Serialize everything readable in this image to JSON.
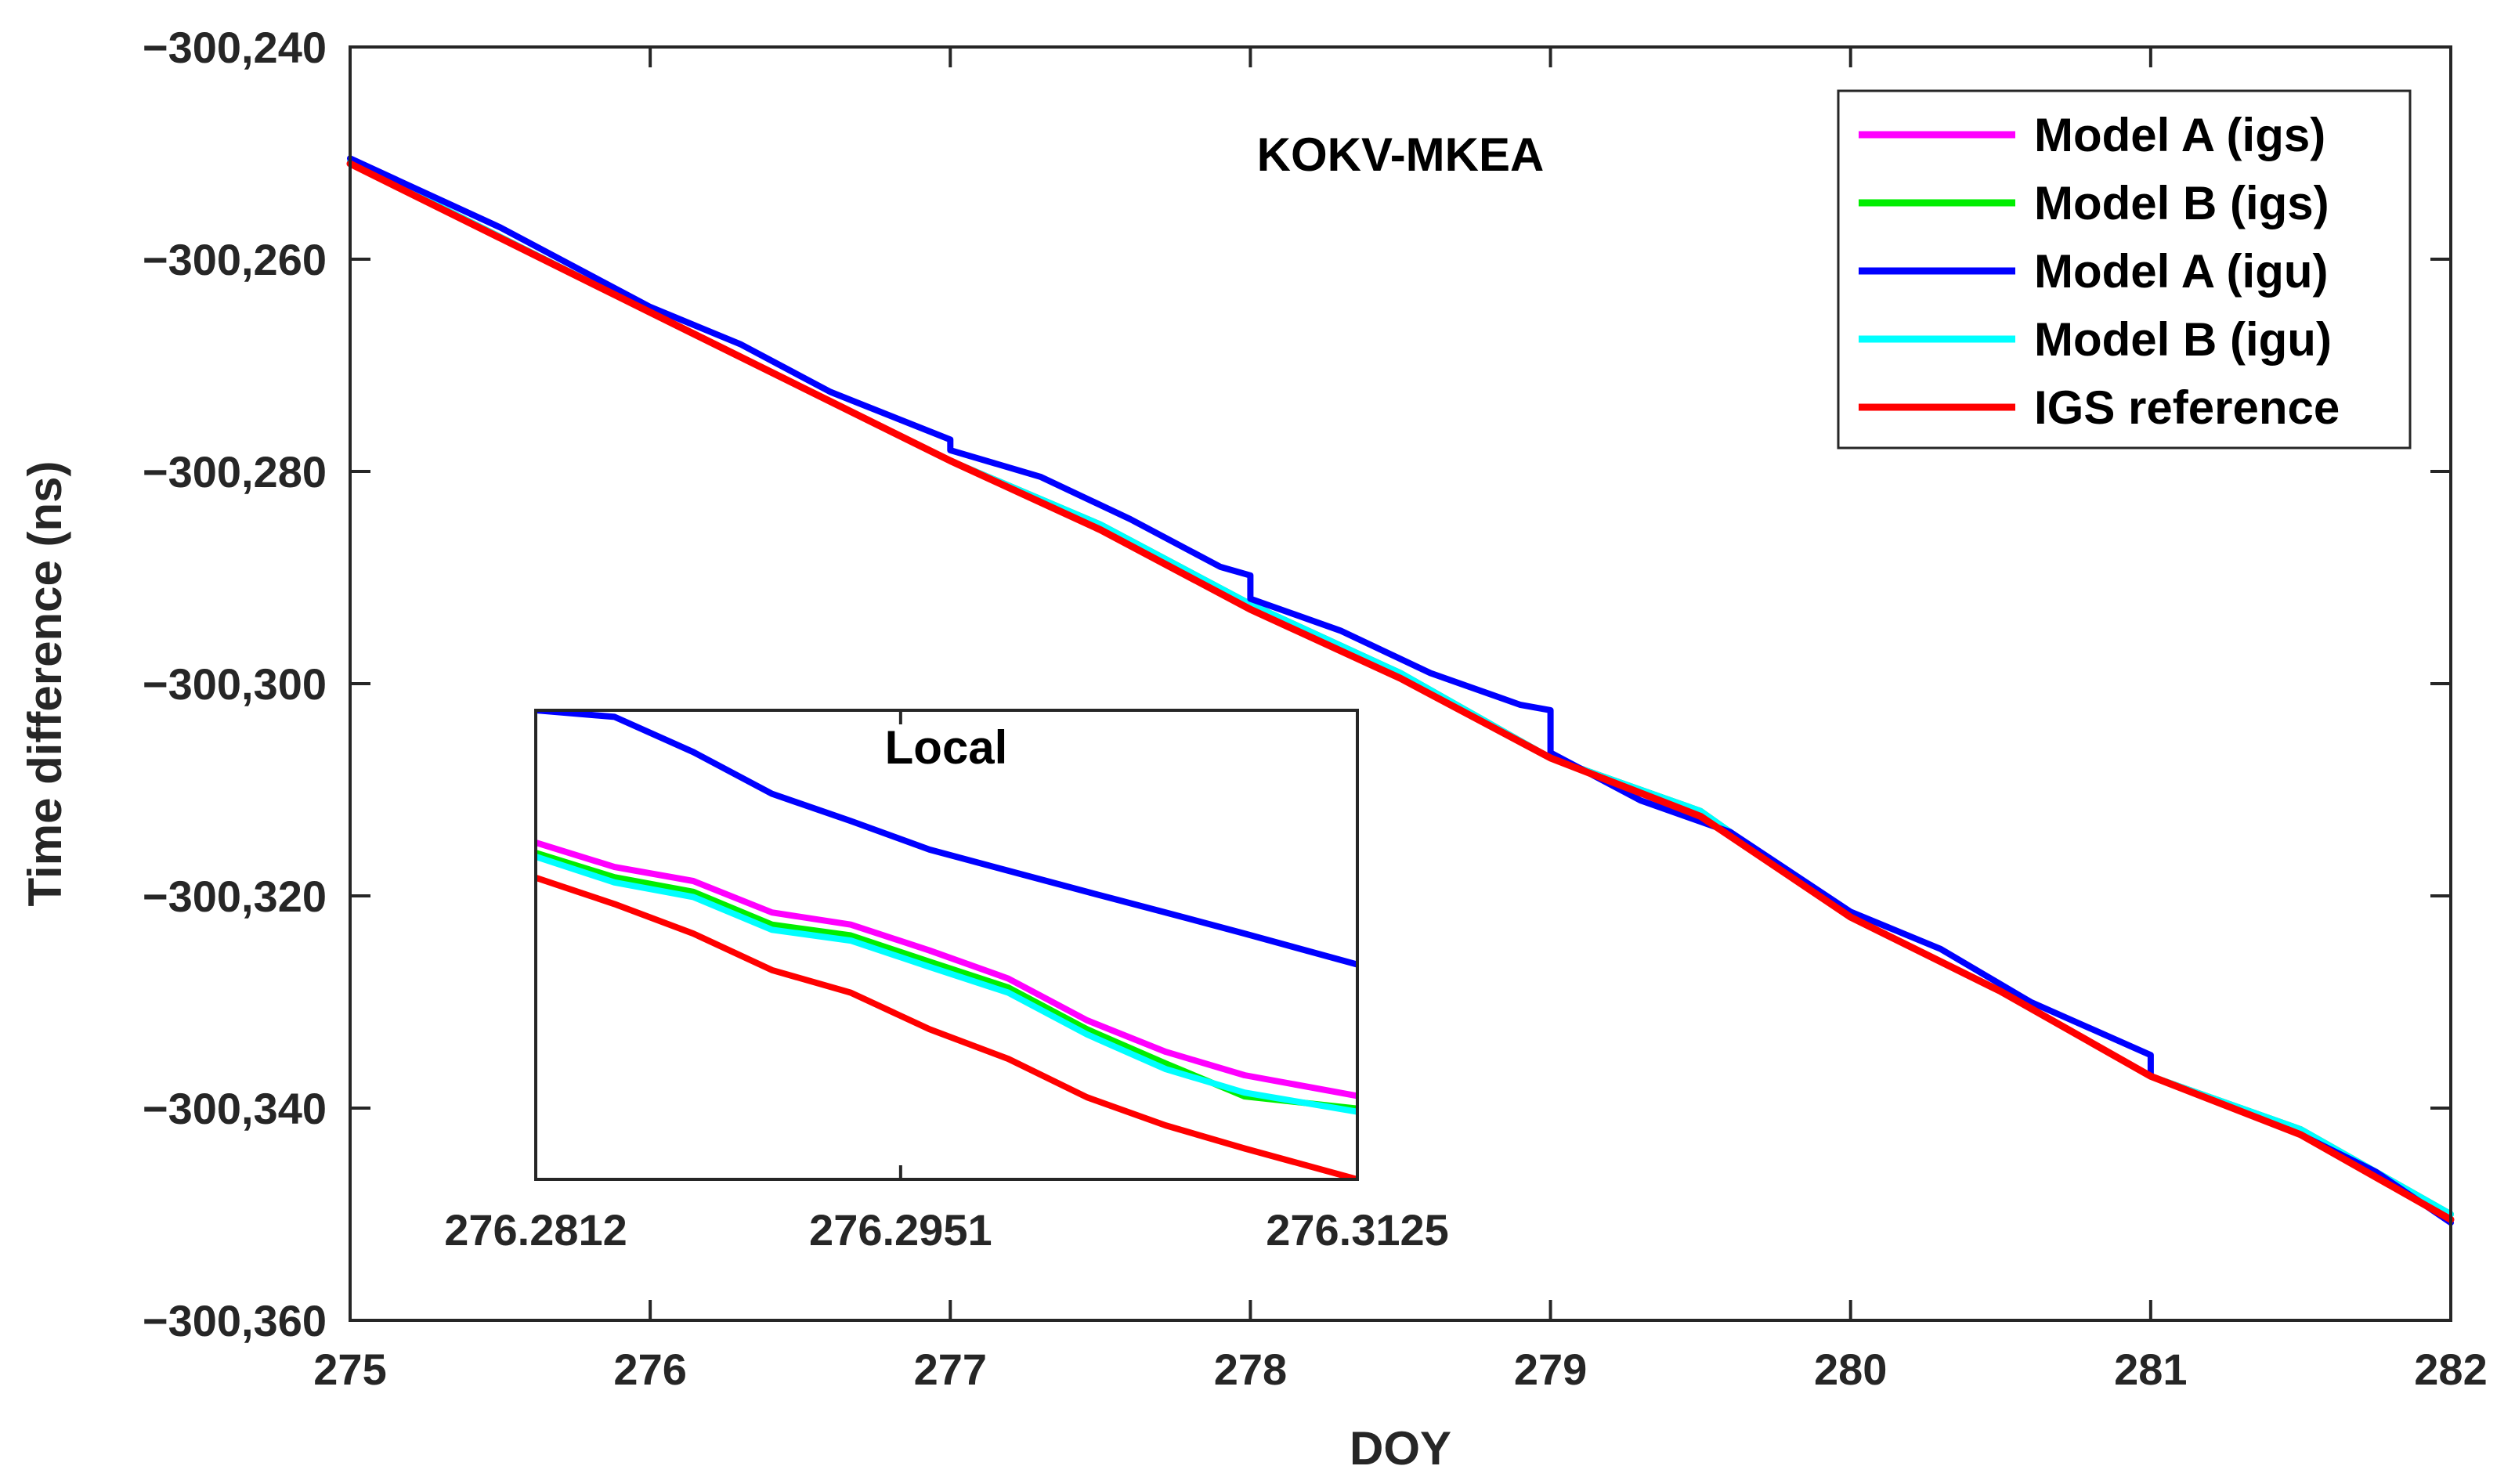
{
  "chart_data": [
    {
      "type": "line",
      "title": "KOKV-MKEA",
      "xlabel": "DOY",
      "ylabel": "Time difference (ns)",
      "xlim": [
        275,
        282
      ],
      "ylim": [
        -300360,
        -300240
      ],
      "x_ticks": [
        275,
        276,
        277,
        278,
        279,
        280,
        281,
        282
      ],
      "x_tick_labels": [
        "275",
        "276",
        "277",
        "278",
        "279",
        "280",
        "281",
        "282"
      ],
      "y_ticks": [
        -300240,
        -300260,
        -300280,
        -300300,
        -300320,
        -300340,
        -300360
      ],
      "y_tick_labels": [
        "−300,240",
        "−300,260",
        "−300,280",
        "−300,300",
        "−300,320",
        "−300,340",
        "−300,360"
      ],
      "legend_position": "top-right",
      "grid": false,
      "series": [
        {
          "name": "Model A (igs)",
          "color": "#ff00ff",
          "points": [
            [
              275,
              -300250.8
            ],
            [
              276,
              -300265
            ],
            [
              276.5,
              -300272
            ],
            [
              277,
              -300279
            ],
            [
              277.5,
              -300285
            ],
            [
              278,
              -300292.5
            ],
            [
              278.5,
              -300299
            ],
            [
              279,
              -300307
            ],
            [
              279.5,
              -300312
            ],
            [
              280,
              -300322
            ],
            [
              280.5,
              -300329
            ],
            [
              281,
              -300337
            ],
            [
              281.5,
              -300342
            ],
            [
              282,
              -300350
            ]
          ]
        },
        {
          "name": "Model B (igs)",
          "color": "#00ee00",
          "points": [
            [
              275,
              -300250.8
            ],
            [
              276,
              -300265
            ],
            [
              276.5,
              -300272
            ],
            [
              277,
              -300279
            ],
            [
              277.5,
              -300285
            ],
            [
              278,
              -300292.5
            ],
            [
              278.5,
              -300299
            ],
            [
              279,
              -300307
            ],
            [
              279.5,
              -300312
            ],
            [
              280,
              -300322
            ],
            [
              280.5,
              -300329
            ],
            [
              281,
              -300337
            ],
            [
              281.5,
              -300342
            ],
            [
              282,
              -300350
            ]
          ]
        },
        {
          "name": "Model A (igu)",
          "color": "#0000ff",
          "points": [
            [
              275,
              -300250.5
            ],
            [
              275.5,
              -300257
            ],
            [
              276,
              -300264.5
            ],
            [
              276.3,
              -300268
            ],
            [
              276.6,
              -300272.5
            ],
            [
              277,
              -300277
            ],
            [
              277,
              -300278
            ],
            [
              277.3,
              -300280.5
            ],
            [
              277.6,
              -300284.5
            ],
            [
              277.9,
              -300289
            ],
            [
              278,
              -300289.8
            ],
            [
              278,
              -300292
            ],
            [
              278.3,
              -300295
            ],
            [
              278.6,
              -300299
            ],
            [
              278.9,
              -300302
            ],
            [
              279,
              -300302.5
            ],
            [
              279,
              -300306.5
            ],
            [
              279.3,
              -300311
            ],
            [
              279.6,
              -300314
            ],
            [
              280,
              -300321.5
            ],
            [
              280.3,
              -300325
            ],
            [
              280.6,
              -300330
            ],
            [
              281,
              -300335
            ],
            [
              281,
              -300337
            ],
            [
              281.5,
              -300342.5
            ],
            [
              281.75,
              -300346
            ],
            [
              282,
              -300350.8
            ]
          ]
        },
        {
          "name": "Model B (igu)",
          "color": "#00ffff",
          "points": [
            [
              275,
              -300250.8
            ],
            [
              276,
              -300265
            ],
            [
              276.5,
              -300272
            ],
            [
              277,
              -300279
            ],
            [
              277.5,
              -300285
            ],
            [
              278,
              -300292.5
            ],
            [
              278.5,
              -300299
            ],
            [
              279,
              -300307
            ],
            [
              279.5,
              -300312
            ],
            [
              280,
              -300322
            ],
            [
              280.5,
              -300329
            ],
            [
              281,
              -300337
            ],
            [
              281.5,
              -300342
            ],
            [
              282,
              -300350
            ]
          ]
        },
        {
          "name": "IGS reference",
          "color": "#ff0000",
          "points": [
            [
              275,
              -300251
            ],
            [
              275.5,
              -300258
            ],
            [
              276,
              -300265
            ],
            [
              276.5,
              -300272
            ],
            [
              277,
              -300279
            ],
            [
              277.5,
              -300285.5
            ],
            [
              278,
              -300293
            ],
            [
              278.5,
              -300299.5
            ],
            [
              279,
              -300307
            ],
            [
              279.5,
              -300312.5
            ],
            [
              280,
              -300322
            ],
            [
              280.5,
              -300329
            ],
            [
              281,
              -300337
            ],
            [
              281.5,
              -300342.5
            ],
            [
              282,
              -300350.5
            ]
          ]
        }
      ]
    },
    {
      "type": "line",
      "title": "Local",
      "x_tick_labels": [
        "276.2812",
        "276.2951",
        "276.3125"
      ],
      "xlim": [
        276.2812,
        276.3125
      ],
      "ylim": [
        0,
        1
      ],
      "x_ticks": [
        276.2812,
        276.2951,
        276.3125
      ],
      "series": [
        {
          "name": "Model A (igs)",
          "color": "#ff00ff",
          "x": [
            276.2812,
            276.2842,
            276.2872,
            276.2902,
            276.2932,
            276.2962,
            276.2992,
            276.3022,
            276.3052,
            276.3082,
            276.3125
          ],
          "y": [
            0.718,
            0.666,
            0.636,
            0.569,
            0.543,
            0.488,
            0.428,
            0.339,
            0.272,
            0.222,
            0.178
          ]
        },
        {
          "name": "Model B (igs)",
          "color": "#00ee00",
          "x": [
            276.2812,
            276.2842,
            276.2872,
            276.2902,
            276.2932,
            276.2962,
            276.2992,
            276.3022,
            276.3052,
            276.3082,
            276.3125
          ],
          "y": [
            0.696,
            0.644,
            0.613,
            0.543,
            0.52,
            0.464,
            0.409,
            0.32,
            0.247,
            0.177,
            0.151
          ]
        },
        {
          "name": "Model A (igu)",
          "color": "#0000ff",
          "x": [
            276.2812,
            276.2842,
            276.2872,
            276.2902,
            276.2932,
            276.2962,
            276.2992,
            276.3022,
            276.3052,
            276.3082,
            276.3125
          ],
          "y": [
            1.0,
            0.986,
            0.911,
            0.822,
            0.764,
            0.703,
            0.658,
            0.613,
            0.569,
            0.524,
            0.458
          ]
        },
        {
          "name": "Model B (igu)",
          "color": "#00ffff",
          "x": [
            276.2812,
            276.2842,
            276.2872,
            276.2902,
            276.2932,
            276.2962,
            276.2992,
            276.3022,
            276.3052,
            276.3082,
            276.3125
          ],
          "y": [
            0.688,
            0.633,
            0.602,
            0.532,
            0.509,
            0.453,
            0.398,
            0.309,
            0.235,
            0.185,
            0.144
          ]
        },
        {
          "name": "IGS reference",
          "color": "#ff0000",
          "x": [
            276.2812,
            276.2842,
            276.2872,
            276.2902,
            276.2932,
            276.2962,
            276.2992,
            276.3022,
            276.3052,
            276.3082,
            276.3125
          ],
          "y": [
            0.643,
            0.587,
            0.524,
            0.446,
            0.398,
            0.32,
            0.257,
            0.175,
            0.115,
            0.066,
            0.0
          ]
        }
      ]
    }
  ]
}
